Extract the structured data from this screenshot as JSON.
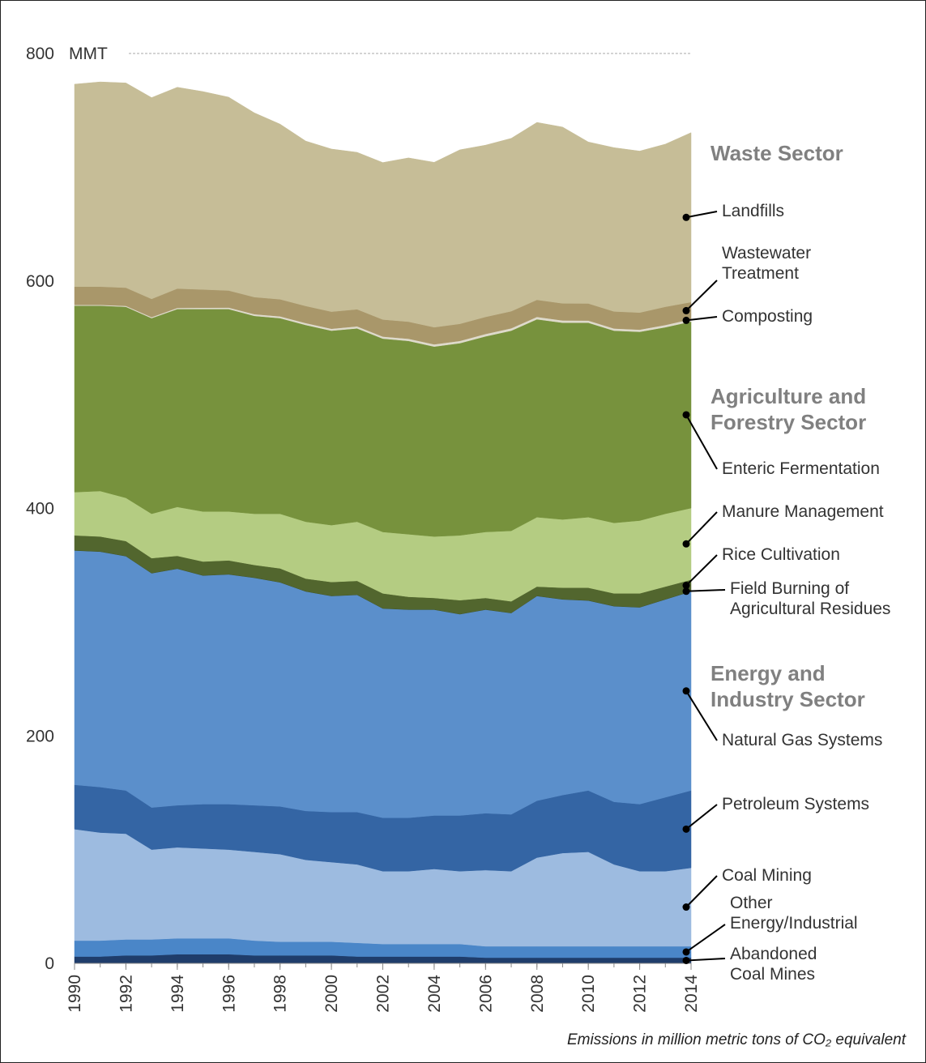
{
  "chart_data": {
    "type": "stacked_area",
    "ylabel": "MMT",
    "note": "Emissions in million metric tons of CO₂ equivalent",
    "annotations": [
      "Waste Sector",
      "Agriculture and Forestry Sector",
      "Energy and Industry Sector"
    ],
    "x": [
      1990,
      1991,
      1992,
      1993,
      1994,
      1995,
      1996,
      1997,
      1998,
      1999,
      2000,
      2001,
      2002,
      2003,
      2004,
      2005,
      2006,
      2007,
      2008,
      2009,
      2010,
      2011,
      2012,
      2013,
      2014
    ],
    "xlim": [
      1990,
      2014
    ],
    "xticks": [
      1990,
      1992,
      1994,
      1996,
      1998,
      2000,
      2002,
      2004,
      2006,
      2008,
      2010,
      2012,
      2014
    ],
    "ylim": [
      0,
      800
    ],
    "yticks": [
      0,
      200,
      400,
      600,
      800
    ],
    "series": [
      {
        "name": "Abandoned Coal Mines",
        "color": "#1f3d6b",
        "values": [
          6,
          6,
          7,
          7,
          8,
          8,
          8,
          7,
          7,
          7,
          7,
          6,
          6,
          6,
          6,
          6,
          5,
          5,
          5,
          5,
          5,
          5,
          5,
          5,
          5
        ]
      },
      {
        "name": "Other Energy/Industrial",
        "color": "#4a86c8",
        "values": [
          14,
          14,
          14,
          14,
          14,
          14,
          14,
          13,
          12,
          12,
          12,
          12,
          11,
          11,
          11,
          11,
          10,
          10,
          10,
          10,
          10,
          10,
          10,
          10,
          10
        ]
      },
      {
        "name": "Coal Mining",
        "color": "#9dbbe0",
        "values": [
          98,
          95,
          93,
          79,
          80,
          79,
          78,
          78,
          77,
          72,
          70,
          69,
          64,
          64,
          66,
          64,
          67,
          66,
          78,
          82,
          83,
          72,
          66,
          66,
          69
        ]
      },
      {
        "name": "Petroleum Systems",
        "color": "#3465a4",
        "values": [
          39,
          40,
          38,
          37,
          37,
          39,
          40,
          41,
          42,
          43,
          44,
          46,
          47,
          47,
          47,
          49,
          50,
          50,
          50,
          51,
          54,
          55,
          59,
          65,
          68
        ]
      },
      {
        "name": "Natural Gas Systems",
        "color": "#5b8fcb",
        "values": [
          206,
          207,
          206,
          206,
          208,
          201,
          202,
          200,
          197,
          193,
          190,
          191,
          184,
          183,
          181,
          177,
          179,
          177,
          180,
          172,
          167,
          172,
          173,
          174,
          175
        ]
      },
      {
        "name": "Field Burning of Agricultural Residues",
        "color": "#3f5224",
        "values": [
          0.3,
          0.3,
          0.3,
          0.3,
          0.3,
          0.3,
          0.3,
          0.3,
          0.3,
          0.3,
          0.3,
          0.3,
          0.3,
          0.3,
          0.3,
          0.3,
          0.3,
          0.3,
          0.3,
          0.3,
          0.3,
          0.3,
          0.3,
          0.3,
          0.3
        ]
      },
      {
        "name": "Rice Cultivation",
        "color": "#52662e",
        "values": [
          13,
          13,
          13,
          13,
          11,
          12,
          12,
          11,
          12,
          11,
          12,
          12,
          13,
          11,
          10,
          12,
          10,
          10,
          8,
          10,
          11,
          11,
          12,
          11,
          10
        ]
      },
      {
        "name": "Manure Management",
        "color": "#b4cc82",
        "values": [
          38,
          40,
          38,
          39,
          43,
          44,
          43,
          45,
          48,
          50,
          50,
          52,
          54,
          55,
          54,
          57,
          58,
          62,
          61,
          60,
          62,
          62,
          64,
          64,
          63
        ]
      },
      {
        "name": "Enteric Fermentation",
        "color": "#77923d",
        "values": [
          164,
          163,
          168,
          172,
          174,
          178,
          178,
          174,
          172,
          173,
          171,
          170,
          170,
          170,
          167,
          169,
          172,
          176,
          174,
          173,
          171,
          169,
          166,
          164,
          164
        ]
      },
      {
        "name": "Composting",
        "color": "#dedacb",
        "values": [
          0.7,
          0.7,
          0.8,
          0.9,
          1,
          1.2,
          1.3,
          1.5,
          1.6,
          1.7,
          1.7,
          1.8,
          1.8,
          1.9,
          2,
          2,
          2.1,
          2.1,
          2.1,
          2,
          1.9,
          1.9,
          1.9,
          2,
          2.1
        ]
      },
      {
        "name": "Wastewater Treatment",
        "color": "#a9976a",
        "values": [
          16,
          16,
          16,
          16,
          17,
          16,
          15,
          15,
          15,
          15,
          15,
          15,
          15,
          15,
          15,
          15,
          15,
          15,
          15,
          15,
          15,
          15,
          15,
          16,
          15
        ]
      },
      {
        "name": "Landfills",
        "color": "#c6bd97",
        "values": [
          178,
          180,
          180,
          177,
          177,
          174,
          170,
          162,
          154,
          145,
          143,
          138,
          138,
          144,
          145,
          153,
          151,
          152,
          156,
          155,
          142,
          144,
          142,
          143,
          149
        ]
      }
    ]
  }
}
